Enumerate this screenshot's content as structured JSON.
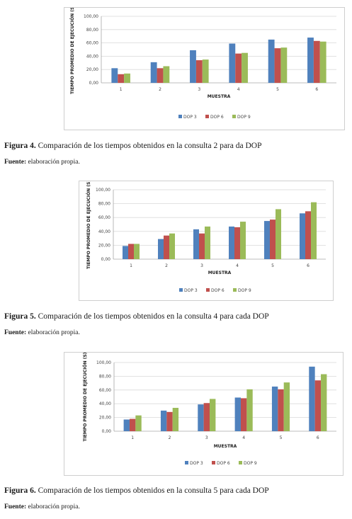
{
  "colors": {
    "dop3": "#4f81bd",
    "dop6": "#c0504d",
    "dop9": "#9bbb59",
    "grid": "#d9d9d9"
  },
  "figures": [
    {
      "caption_label": "Figura 4.",
      "caption_text": " Comparación de los tiempos obtenidos en la consulta 2 para da DOP",
      "source_label": "Fuente:",
      "source_text": " elaboración propia."
    },
    {
      "caption_label": "Figura 5.",
      "caption_text": " Comparación de los tiempos obtenidos en la consulta 4 para cada DOP",
      "source_label": "Fuente:",
      "source_text": " elaboración propia."
    },
    {
      "caption_label": "Figura 6.",
      "caption_text": " Comparación de los tiempos obtenidos en la consulta 5 para cada DOP",
      "source_label": "Fuente:",
      "source_text": " elaboración propia."
    }
  ],
  "chart_data": [
    {
      "type": "bar",
      "categories": [
        "1",
        "2",
        "3",
        "4",
        "5",
        "6"
      ],
      "series": [
        {
          "name": "DOP 3",
          "values": [
            22,
            31,
            49,
            59,
            65,
            68
          ]
        },
        {
          "name": "DOP 6",
          "values": [
            13,
            22,
            34,
            44,
            52,
            63
          ]
        },
        {
          "name": "DOP 9",
          "values": [
            14,
            25,
            35,
            45,
            53,
            62
          ]
        }
      ],
      "xlabel": "MUESTRA",
      "ylabel": "TIEMPO PROMEDIO DE EJECUCIÓN (S)",
      "ylim": [
        0,
        100
      ],
      "yticks": [
        "0,00",
        "20,00",
        "40,00",
        "60,00",
        "80,00",
        "100,00"
      ],
      "grid": true,
      "legend_position": "bottom"
    },
    {
      "type": "bar",
      "categories": [
        "1",
        "2",
        "3",
        "4",
        "5",
        "6"
      ],
      "series": [
        {
          "name": "DOP 3",
          "values": [
            19,
            29,
            43,
            47,
            55,
            66
          ]
        },
        {
          "name": "DOP 6",
          "values": [
            22,
            34,
            37,
            46,
            57,
            69
          ]
        },
        {
          "name": "DOP 9",
          "values": [
            22,
            37,
            47,
            54,
            72,
            82
          ]
        }
      ],
      "xlabel": "MUESTRA",
      "ylabel": "TIEMPO PROMEDIO DE EJECUCIÓN (S)",
      "ylim": [
        0,
        100
      ],
      "yticks": [
        "0,00",
        "20,00",
        "40,00",
        "60,00",
        "80,00",
        "100,00"
      ],
      "grid": true,
      "legend_position": "bottom"
    },
    {
      "type": "bar",
      "categories": [
        "1",
        "2",
        "3",
        "4",
        "5",
        "6"
      ],
      "series": [
        {
          "name": "DOP 3",
          "values": [
            17,
            30,
            39,
            49,
            65,
            94
          ]
        },
        {
          "name": "DOP 6",
          "values": [
            18,
            28,
            41,
            48,
            61,
            74
          ]
        },
        {
          "name": "DOP 9",
          "values": [
            23,
            34,
            47,
            61,
            71,
            83
          ]
        }
      ],
      "xlabel": "MUESTRA",
      "ylabel": "TIEMPO PROMEDIO DE EJECUCIÓN (S)",
      "ylim": [
        0,
        100
      ],
      "yticks": [
        "0,00",
        "20,00",
        "40,00",
        "60,00",
        "80,00",
        "100,00"
      ],
      "grid": true,
      "legend_position": "bottom"
    }
  ]
}
